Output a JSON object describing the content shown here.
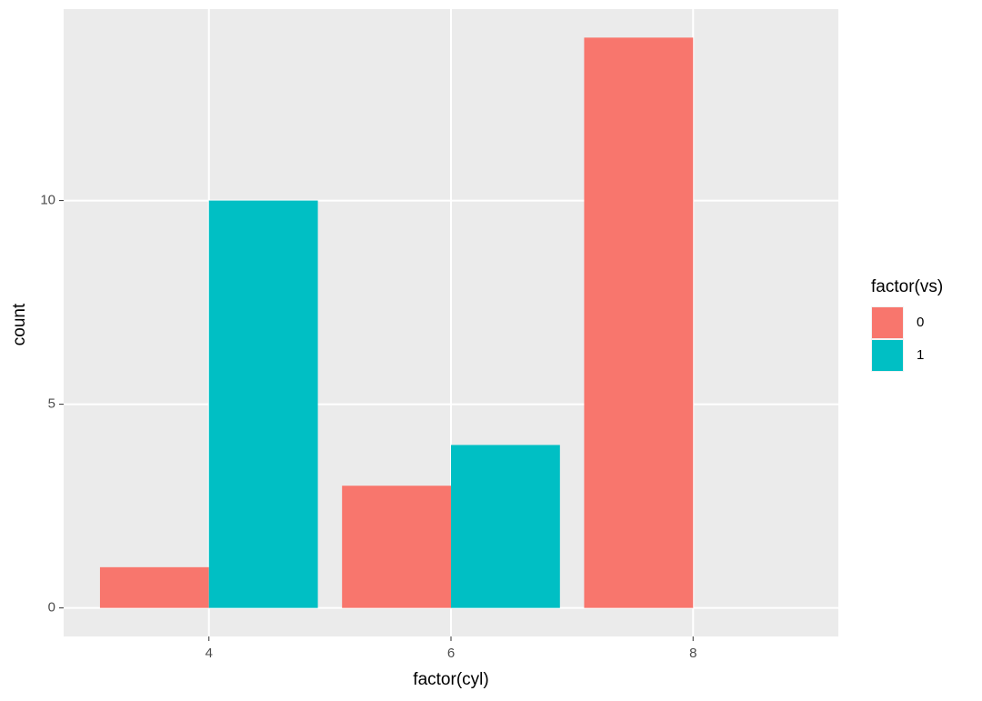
{
  "chart_data": {
    "type": "bar",
    "x_label": "factor(cyl)",
    "y_label": "count",
    "categories": [
      "4",
      "6",
      "8"
    ],
    "series": [
      {
        "name": "0",
        "color": "#f8766d",
        "values": [
          1,
          3,
          14
        ]
      },
      {
        "name": "1",
        "color": "#00bfc4",
        "values": [
          10,
          4,
          0
        ]
      }
    ],
    "legend_title": "factor(vs)",
    "legend_position": "right",
    "ylim": [
      -0.7,
      14.7
    ],
    "yticks": [
      0,
      5,
      10
    ],
    "grid": true
  }
}
